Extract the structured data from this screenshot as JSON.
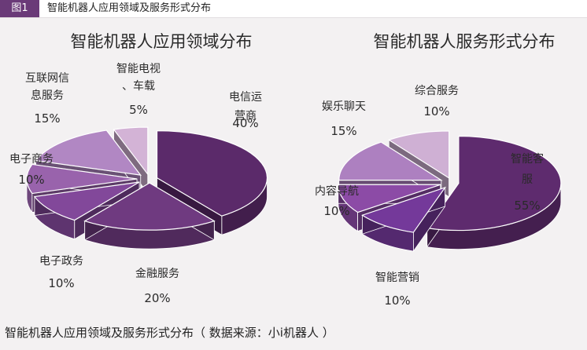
{
  "header": {
    "figure_label": "图1",
    "title": "智能机器人应用领域及服务形式分布"
  },
  "caption": "智能机器人应用领域及服务形式分布（ 数据来源：小i机器人 ）",
  "colors": {
    "badge": "#6a3a78",
    "light": "#d6b8d4",
    "mid": "#a46fae",
    "dark": "#5c2b6a"
  },
  "chart_data": [
    {
      "type": "pie",
      "title": "智能机器人应用领域分布",
      "slices": [
        {
          "label_lines": [
            "电信运",
            "营商"
          ],
          "value": 40,
          "value_label": "40%",
          "color": "#5b2a6a"
        },
        {
          "label_lines": [
            "金融服务"
          ],
          "value": 20,
          "value_label": "20%",
          "color": "#6f3a80"
        },
        {
          "label_lines": [
            "电子政务"
          ],
          "value": 10,
          "value_label": "10%",
          "color": "#82489a"
        },
        {
          "label_lines": [
            "电子商务"
          ],
          "value": 10,
          "value_label": "10%",
          "color": "#9963ac"
        },
        {
          "label_lines": [
            "互联网信",
            "息服务"
          ],
          "value": 15,
          "value_label": "15%",
          "color": "#b187c3"
        },
        {
          "label_lines": [
            "智能电视",
            "、车载"
          ],
          "value": 5,
          "value_label": "5%",
          "color": "#d3b3d6"
        }
      ]
    },
    {
      "type": "pie",
      "title": "智能机器人服务形式分布",
      "slices": [
        {
          "label_lines": [
            "智能客",
            "服"
          ],
          "value": 55,
          "value_label": "55%",
          "color": "#5e2b6e"
        },
        {
          "label_lines": [
            "智能营销"
          ],
          "value": 10,
          "value_label": "10%",
          "color": "#74399a"
        },
        {
          "label_lines": [
            "内容导航"
          ],
          "value": 10,
          "value_label": "10%",
          "color": "#8c4ba6"
        },
        {
          "label_lines": [
            "娱乐聊天"
          ],
          "value": 15,
          "value_label": "15%",
          "color": "#ad80c0"
        },
        {
          "label_lines": [
            "综合服务"
          ],
          "value": 10,
          "value_label": "10%",
          "color": "#cfb0d4"
        }
      ]
    }
  ]
}
